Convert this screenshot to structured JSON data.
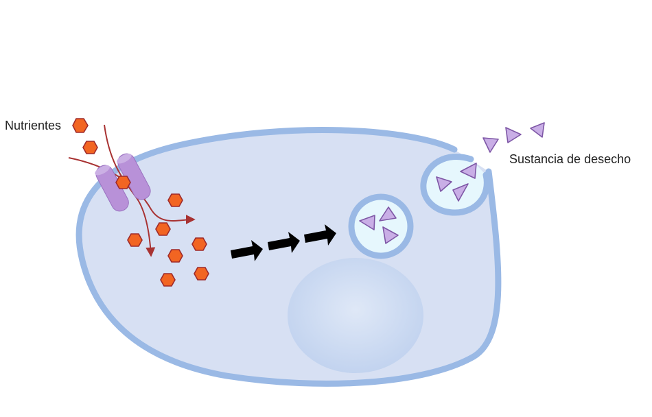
{
  "labels": {
    "nutrients": "Nutrientes",
    "waste": "Sustancia de desecho"
  },
  "colors": {
    "cytoplasm": "#d7e0f3",
    "membrane": "#9ab9e5",
    "nucleus": "#c7d7f1",
    "vesicle_interior": "#e6f7fd",
    "nutrient_fill": "#f26522",
    "nutrient_stroke": "#9e2a2b",
    "waste_fill": "#c9aee6",
    "waste_stroke": "#7e57a6",
    "channel_protein": "#b891d8",
    "flow_arrow": "#a83232",
    "process_arrow": "#000000"
  },
  "icons": {
    "nutrient": "orange-hexagon",
    "waste": "purple-triangle",
    "process": "black-block-arrow"
  }
}
